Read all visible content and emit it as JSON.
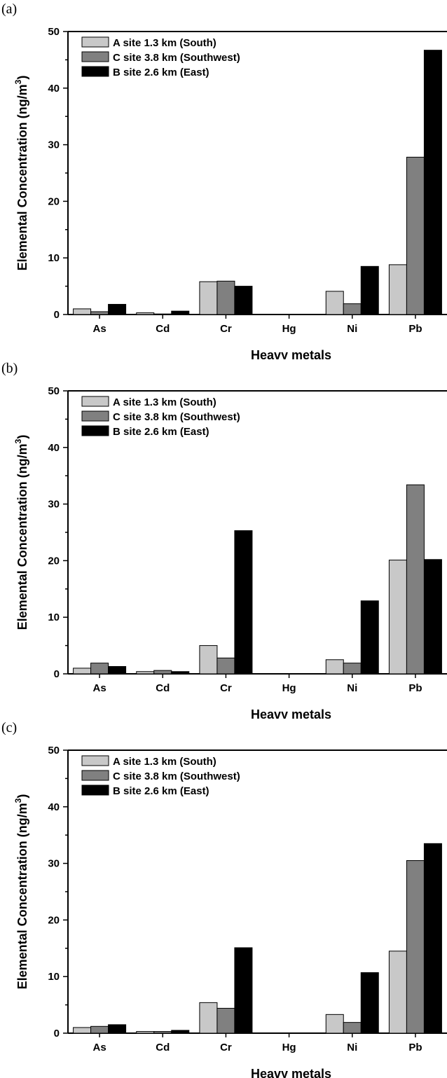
{
  "chart_data": [
    {
      "panel_label": "(a)",
      "type": "bar",
      "categories": [
        "As",
        "Cd",
        "Cr",
        "Hg",
        "Ni",
        "Pb"
      ],
      "xlabel": "Heavy metals",
      "ylabel": "Elemental Concentration (ng/m",
      "ylabel_sup": "3",
      "ylabel_end": ")",
      "ylim": [
        0,
        50
      ],
      "yticks": [
        0,
        10,
        20,
        30,
        40,
        50
      ],
      "legend_position": "top-left",
      "grid": false,
      "series": [
        {
          "name": "A site 1.3 km (South)",
          "color": "#c8c8c8",
          "values": [
            1.0,
            0.3,
            5.8,
            0.0,
            4.1,
            8.8
          ]
        },
        {
          "name": "C site 3.8 km (Southwest)",
          "color": "#808080",
          "values": [
            0.5,
            0.1,
            5.9,
            0.0,
            1.9,
            27.8
          ]
        },
        {
          "name": "B site 2.6 km (East)",
          "color": "#000000",
          "values": [
            1.8,
            0.6,
            5.0,
            0.0,
            8.5,
            46.7
          ]
        }
      ]
    },
    {
      "panel_label": "(b)",
      "type": "bar",
      "categories": [
        "As",
        "Cd",
        "Cr",
        "Hg",
        "Ni",
        "Pb"
      ],
      "xlabel": "Heavy metals",
      "ylabel": "Elemental Concentration (ng/m",
      "ylabel_sup": "3",
      "ylabel_end": ")",
      "ylim": [
        0,
        50
      ],
      "yticks": [
        0,
        10,
        20,
        30,
        40,
        50
      ],
      "legend_position": "top-left",
      "grid": false,
      "series": [
        {
          "name": "A site 1.3 km (South)",
          "color": "#c8c8c8",
          "values": [
            1.0,
            0.4,
            5.0,
            0.0,
            2.5,
            20.1
          ]
        },
        {
          "name": "C site 3.8 km (Southwest)",
          "color": "#808080",
          "values": [
            1.9,
            0.6,
            2.8,
            0.0,
            1.9,
            33.4
          ]
        },
        {
          "name": "B site 2.6 km (East)",
          "color": "#000000",
          "values": [
            1.3,
            0.4,
            25.3,
            0.0,
            12.9,
            20.2
          ]
        }
      ]
    },
    {
      "panel_label": "(c)",
      "type": "bar",
      "categories": [
        "As",
        "Cd",
        "Cr",
        "Hg",
        "Ni",
        "Pb"
      ],
      "xlabel": "Heavy metals",
      "ylabel": "Elemental Concentration (ng/m",
      "ylabel_sup": "3",
      "ylabel_end": ")",
      "ylim": [
        0,
        50
      ],
      "yticks": [
        0,
        10,
        20,
        30,
        40,
        50
      ],
      "legend_position": "top-left",
      "grid": false,
      "series": [
        {
          "name": "A site 1.3 km (South)",
          "color": "#c8c8c8",
          "values": [
            1.0,
            0.3,
            5.4,
            0.0,
            3.3,
            14.5
          ]
        },
        {
          "name": "C site 3.8 km (Southwest)",
          "color": "#808080",
          "values": [
            1.2,
            0.3,
            4.4,
            0.0,
            1.9,
            30.5
          ]
        },
        {
          "name": "B site 2.6 km (East)",
          "color": "#000000",
          "values": [
            1.5,
            0.5,
            15.1,
            0.0,
            10.7,
            33.5
          ]
        }
      ]
    }
  ]
}
